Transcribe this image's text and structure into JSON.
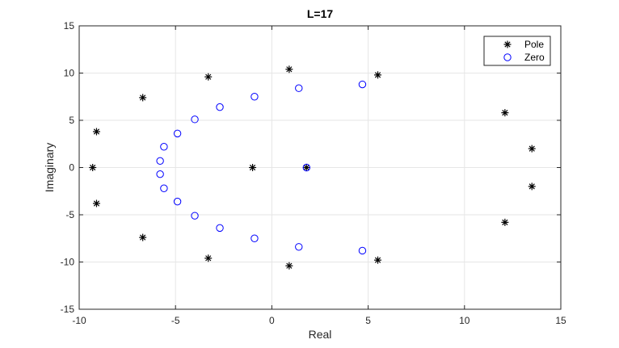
{
  "chart_data": {
    "type": "scatter",
    "title": "L=17",
    "xlabel": "Real",
    "ylabel": "Imaginary",
    "xlim": [
      -10,
      15
    ],
    "ylim": [
      -15,
      15
    ],
    "xticks": [
      -10,
      -5,
      0,
      5,
      10,
      15
    ],
    "yticks": [
      -15,
      -10,
      -5,
      0,
      5,
      10,
      15
    ],
    "grid": true,
    "legend_position": "top-right",
    "series": [
      {
        "name": "Pole",
        "marker": "asterisk",
        "color": "#000000",
        "points": [
          [
            -9.3,
            0
          ],
          [
            -9.1,
            3.8
          ],
          [
            -9.1,
            -3.8
          ],
          [
            -6.7,
            7.4
          ],
          [
            -6.7,
            -7.4
          ],
          [
            -3.3,
            9.6
          ],
          [
            -3.3,
            -9.6
          ],
          [
            -1.0,
            0
          ],
          [
            0.9,
            10.4
          ],
          [
            0.9,
            -10.4
          ],
          [
            1.8,
            0
          ],
          [
            5.5,
            9.8
          ],
          [
            5.5,
            -9.8
          ],
          [
            12.1,
            5.8
          ],
          [
            12.1,
            -5.8
          ],
          [
            13.5,
            2.0
          ],
          [
            13.5,
            -2.0
          ]
        ]
      },
      {
        "name": "Zero",
        "marker": "circle",
        "color": "#0000ff",
        "points": [
          [
            -5.8,
            0.7
          ],
          [
            -5.8,
            -0.7
          ],
          [
            -5.6,
            2.2
          ],
          [
            -5.6,
            -2.2
          ],
          [
            -4.9,
            3.6
          ],
          [
            -4.9,
            -3.6
          ],
          [
            -4.0,
            5.1
          ],
          [
            -4.0,
            -5.1
          ],
          [
            -2.7,
            6.4
          ],
          [
            -2.7,
            -6.4
          ],
          [
            -0.9,
            7.5
          ],
          [
            -0.9,
            -7.5
          ],
          [
            1.4,
            8.4
          ],
          [
            1.4,
            -8.4
          ],
          [
            4.7,
            8.8
          ],
          [
            4.7,
            -8.8
          ],
          [
            1.8,
            0
          ]
        ]
      }
    ]
  }
}
